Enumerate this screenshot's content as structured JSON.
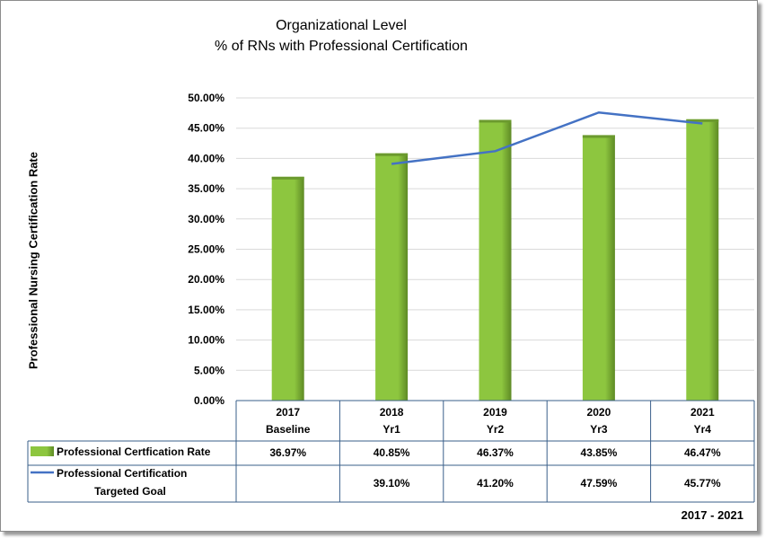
{
  "chart_data": {
    "type": "bar",
    "title": "Organizational Level",
    "subtitle": "% of RNs with Professional Certification",
    "ylabel": "Professional Nursing Certification Rate",
    "ylim": [
      0,
      50
    ],
    "yticks": [
      "0.00%",
      "5.00%",
      "10.00%",
      "15.00%",
      "20.00%",
      "25.00%",
      "30.00%",
      "35.00%",
      "40.00%",
      "45.00%",
      "50.00%"
    ],
    "grid": true,
    "categories": [
      {
        "year": "2017",
        "period": "Baseline"
      },
      {
        "year": "2018",
        "period": "Yr1"
      },
      {
        "year": "2019",
        "period": "Yr2"
      },
      {
        "year": "2020",
        "period": "Yr3"
      },
      {
        "year": "2021",
        "period": "Yr4"
      }
    ],
    "series": [
      {
        "name": "Professional Certfication Rate",
        "kind": "bar",
        "color": "#8dc63f",
        "values": [
          36.97,
          40.85,
          46.37,
          43.85,
          46.47
        ],
        "labels": [
          "36.97%",
          "40.85%",
          "46.37%",
          "43.85%",
          "46.47%"
        ]
      },
      {
        "name_lines": [
          "Professional Certification",
          "Targeted Goal"
        ],
        "kind": "line",
        "color": "#4472c4",
        "values": [
          null,
          39.1,
          41.2,
          47.59,
          45.77
        ],
        "labels": [
          "",
          "39.10%",
          "41.20%",
          "47.59%",
          "45.77%"
        ]
      }
    ],
    "footnote": "2017 - 2021"
  }
}
